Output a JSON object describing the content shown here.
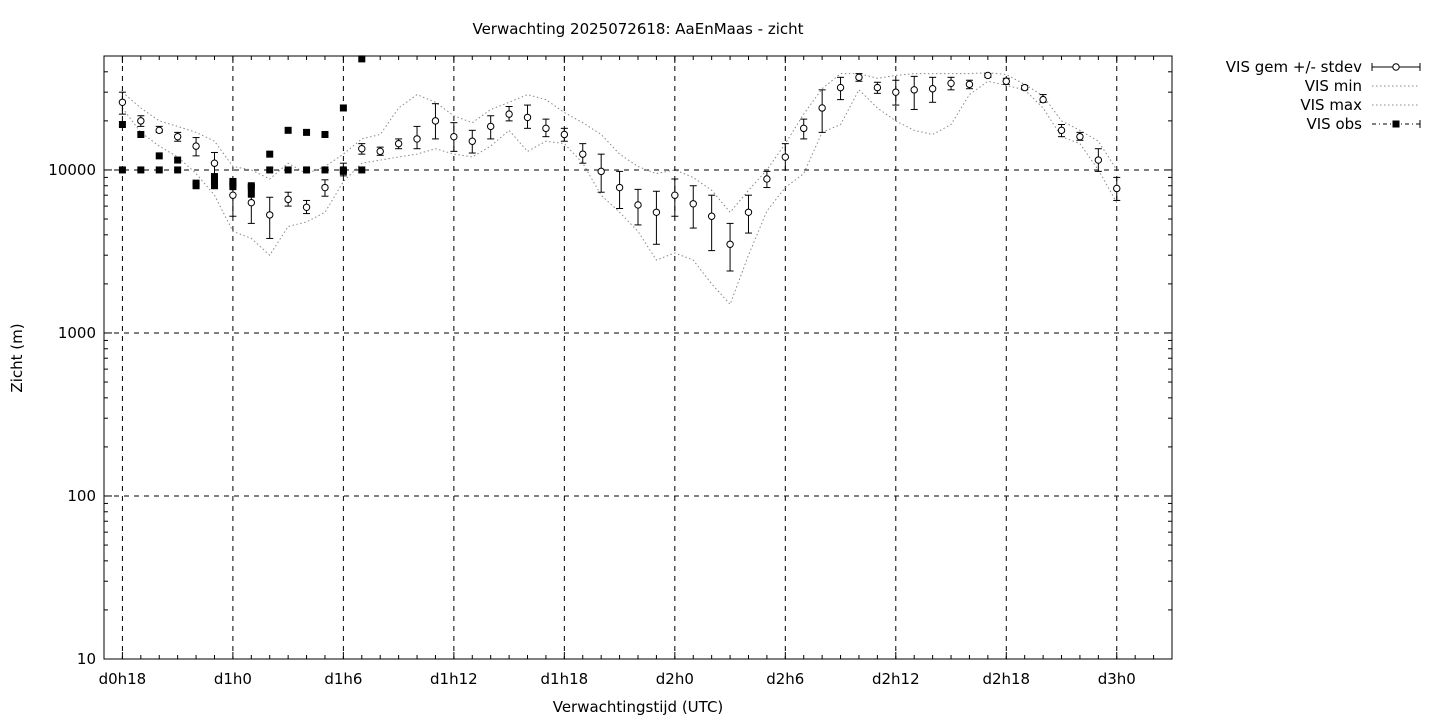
{
  "chart_data": {
    "type": "line",
    "title": "Verwachting 2025072618: AaEnMaas - zicht",
    "xlabel": "Verwachtingstijd (UTC)",
    "ylabel": "Zicht (m)",
    "yscale": "log",
    "ylim": [
      10,
      50000
    ],
    "xlim_hours": [
      17,
      75
    ],
    "grid": true,
    "legend_position": "top-right, outside plot",
    "x_ticks": [
      {
        "h": 18,
        "label": "d0h18"
      },
      {
        "h": 24,
        "label": "d1h0"
      },
      {
        "h": 30,
        "label": "d1h6"
      },
      {
        "h": 36,
        "label": "d1h12"
      },
      {
        "h": 42,
        "label": "d1h18"
      },
      {
        "h": 48,
        "label": "d2h0"
      },
      {
        "h": 54,
        "label": "d2h6"
      },
      {
        "h": 60,
        "label": "d2h12"
      },
      {
        "h": 66,
        "label": "d2h18"
      },
      {
        "h": 72,
        "label": "d3h0"
      }
    ],
    "y_ticks": [
      {
        "v": 10,
        "label": "10"
      },
      {
        "v": 100,
        "label": "100"
      },
      {
        "v": 1000,
        "label": "1000"
      },
      {
        "v": 10000,
        "label": "10000"
      }
    ],
    "legend": [
      {
        "label": "VIS gem +/- stdev",
        "style": "errorbars"
      },
      {
        "label": "VIS min",
        "style": "dotted"
      },
      {
        "label": "VIS max",
        "style": "dotted"
      },
      {
        "label": "VIS obs",
        "style": "squares"
      }
    ],
    "series": [
      {
        "name": "VIS gem +/- stdev",
        "x": [
          18,
          19,
          20,
          21,
          22,
          23,
          24,
          25,
          26,
          27,
          28,
          29,
          30,
          31,
          32,
          33,
          34,
          35,
          36,
          37,
          38,
          39,
          40,
          41,
          42,
          43,
          44,
          45,
          46,
          47,
          48,
          49,
          50,
          51,
          52,
          53,
          54,
          55,
          56,
          57,
          58,
          59,
          60,
          61,
          62,
          63,
          64,
          65,
          66,
          67,
          68,
          69,
          70,
          71,
          72
        ],
        "y": [
          26000,
          20000,
          17500,
          16000,
          14000,
          11000,
          7000,
          6300,
          5300,
          6600,
          5900,
          7800,
          10000,
          13500,
          13000,
          14500,
          15500,
          20000,
          16000,
          15000,
          18500,
          22000,
          21000,
          18000,
          16500,
          12500,
          9800,
          7800,
          6100,
          5500,
          7000,
          6200,
          5200,
          3500,
          5500,
          8800,
          12000,
          18000,
          24000,
          32000,
          37000,
          32000,
          30000,
          31000,
          31500,
          34000,
          33500,
          38000,
          35000,
          32000,
          27000,
          17500,
          16000,
          11500,
          7700
        ],
        "low": [
          22000,
          18500,
          17000,
          15000,
          12200,
          9500,
          5200,
          4700,
          3800,
          6000,
          5400,
          6900,
          9200,
          12500,
          12300,
          13500,
          13500,
          15500,
          13000,
          12700,
          15500,
          20000,
          18000,
          16000,
          15000,
          11000,
          7300,
          5800,
          4600,
          3500,
          5200,
          4400,
          3200,
          2400,
          4100,
          7800,
          10000,
          15500,
          17000,
          27000,
          35000,
          29500,
          25000,
          23500,
          26000,
          31000,
          31500,
          37000,
          33500,
          31000,
          26000,
          16000,
          15200,
          9800,
          6500
        ],
        "high": [
          30000,
          21500,
          18500,
          17000,
          15800,
          12800,
          8800,
          8000,
          6800,
          7300,
          6500,
          8700,
          11000,
          14500,
          13800,
          15500,
          18500,
          25500,
          19500,
          17500,
          21500,
          24500,
          25000,
          20500,
          18000,
          14500,
          12500,
          9800,
          7600,
          7400,
          8800,
          8000,
          7000,
          4700,
          7000,
          9800,
          14500,
          20500,
          31000,
          37000,
          39000,
          34500,
          35500,
          37500,
          37000,
          37000,
          35500,
          39000,
          36500,
          33000,
          29000,
          19000,
          17000,
          13500,
          9000
        ]
      },
      {
        "name": "VIS min",
        "x": [
          18,
          19,
          20,
          21,
          22,
          23,
          24,
          25,
          26,
          27,
          28,
          29,
          30,
          31,
          32,
          33,
          34,
          35,
          36,
          37,
          38,
          39,
          40,
          41,
          42,
          43,
          44,
          45,
          46,
          47,
          48,
          49,
          50,
          51,
          52,
          53,
          54,
          55,
          56,
          57,
          58,
          59,
          60,
          61,
          62,
          63,
          64,
          65,
          66,
          67,
          68,
          69,
          70,
          71,
          72
        ],
        "y": [
          24000,
          17000,
          14000,
          12000,
          9500,
          7000,
          4200,
          3800,
          3000,
          4500,
          4800,
          5500,
          8500,
          11000,
          11500,
          12000,
          12500,
          13500,
          12500,
          12000,
          14000,
          17500,
          13000,
          15000,
          14500,
          11000,
          7000,
          5500,
          4200,
          2800,
          3100,
          2800,
          2000,
          1500,
          3000,
          5600,
          7800,
          9500,
          17000,
          19000,
          31000,
          24000,
          20000,
          17500,
          16500,
          19000,
          29000,
          35000,
          33000,
          31000,
          24000,
          16000,
          14500,
          10000,
          6300
        ]
      },
      {
        "name": "VIS max",
        "x": [
          18,
          19,
          20,
          21,
          22,
          23,
          24,
          25,
          26,
          27,
          28,
          29,
          30,
          31,
          32,
          33,
          34,
          35,
          36,
          37,
          38,
          39,
          40,
          41,
          42,
          43,
          44,
          45,
          46,
          47,
          48,
          49,
          50,
          51,
          52,
          53,
          54,
          55,
          56,
          57,
          58,
          59,
          60,
          61,
          62,
          63,
          64,
          65,
          66,
          67,
          68,
          69,
          70,
          71,
          72
        ],
        "y": [
          30000,
          24000,
          20000,
          18500,
          17000,
          15000,
          10500,
          10000,
          8800,
          11000,
          9500,
          10500,
          12500,
          15500,
          16500,
          24000,
          29000,
          26000,
          21500,
          19500,
          23500,
          26000,
          29000,
          27000,
          22500,
          19500,
          16500,
          12500,
          10500,
          9500,
          10000,
          9000,
          7500,
          5500,
          7500,
          10000,
          14500,
          22000,
          31500,
          39000,
          39000,
          36500,
          38000,
          39000,
          39000,
          39000,
          39000,
          39500,
          38500,
          33500,
          28500,
          20000,
          17500,
          15000,
          10000
        ]
      },
      {
        "name": "VIS obs",
        "x": [
          18,
          18,
          19,
          19,
          20,
          20,
          21,
          21,
          22,
          22,
          23,
          23,
          23,
          24,
          24,
          24,
          25,
          25,
          25,
          26,
          26,
          27,
          27,
          28,
          28,
          29,
          29,
          30,
          30,
          30,
          31,
          31
        ],
        "y": [
          10000,
          19000,
          10000,
          16500,
          10000,
          12200,
          10000,
          11500,
          8300,
          8000,
          9000,
          8500,
          8000,
          8500,
          8200,
          7900,
          8000,
          7800,
          7100,
          12500,
          10000,
          17500,
          10000,
          17000,
          10000,
          16500,
          10000,
          24000,
          10000,
          9800,
          48000,
          10000
        ]
      }
    ]
  }
}
